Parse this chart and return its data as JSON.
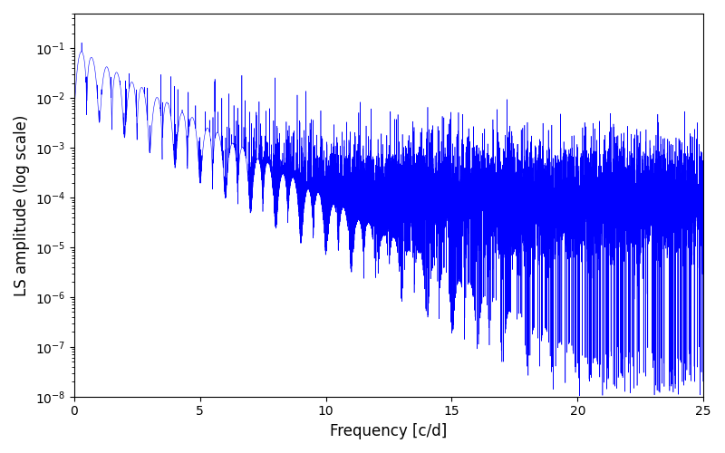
{
  "xlabel": "Frequency [c/d]",
  "ylabel": "LS amplitude (log scale)",
  "xlim": [
    0,
    25
  ],
  "ylim": [
    1e-08,
    0.5
  ],
  "line_color": "#0000ff",
  "background_color": "#ffffff",
  "xticks": [
    0,
    5,
    10,
    15,
    20,
    25
  ],
  "figsize": [
    8.0,
    5.0
  ],
  "dpi": 100,
  "seed": 137,
  "N": 10000,
  "freq_max": 25.0
}
